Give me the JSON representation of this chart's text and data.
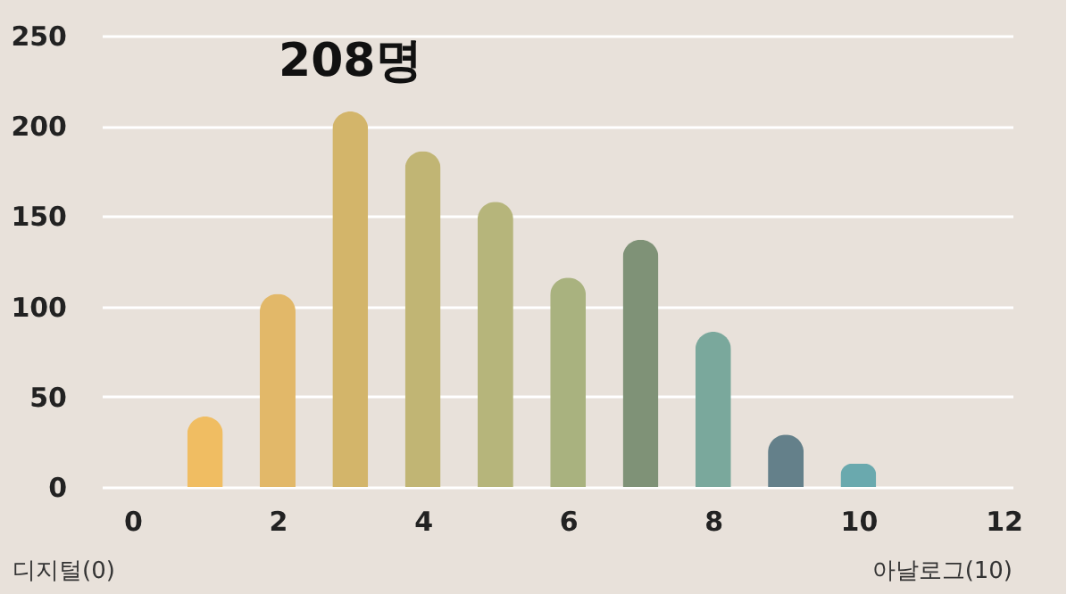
{
  "chart_data": {
    "type": "bar",
    "x": [
      1,
      2,
      3,
      4,
      5,
      6,
      7,
      8,
      9,
      10
    ],
    "values": [
      39,
      107,
      208,
      186,
      158,
      116,
      137,
      86,
      29,
      13
    ],
    "colors": [
      "#f0bd62",
      "#e2b869",
      "#d3b56a",
      "#c1b574",
      "#b6b57b",
      "#a9b27f",
      "#7f9277",
      "#7aa89c",
      "#64808a",
      "#6aa9ae"
    ],
    "value_labels": [
      null,
      null,
      "208명",
      null,
      null,
      null,
      null,
      null,
      null,
      null
    ],
    "xlim": [
      -0.3,
      12
    ],
    "xticks": [
      0,
      2,
      4,
      6,
      8,
      10,
      12
    ],
    "ylim": [
      0,
      250
    ],
    "yticks": [
      0,
      50,
      100,
      150,
      200,
      250
    ],
    "grid": "y",
    "legend": false,
    "annotations": [
      "디지털(0)",
      "아날로그(10)"
    ]
  }
}
